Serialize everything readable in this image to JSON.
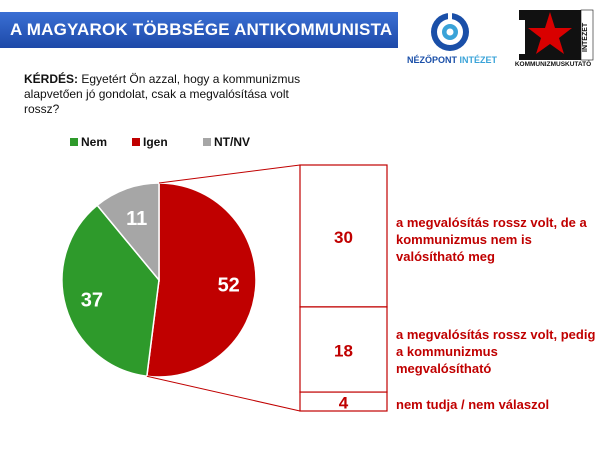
{
  "header": {
    "title": "A MAGYAROK TÖBBSÉGE ANTIKOMMUNISTA",
    "logo1_text_a": "NÉZŐPONT",
    "logo1_text_b": "INTÉZET",
    "logo2_text_main": "KOMMUNIZMUSKUTATÓ",
    "logo2_text_side": "INTÉZET"
  },
  "question": {
    "label": "KÉRDÉS",
    "text": "Egyetért Ön azzal, hogy a kommunizmus alapvetően jó gondolat, csak a megvalósítása volt rossz?"
  },
  "colors": {
    "nem": "#2e9a2b",
    "igen": "#c00000",
    "ntnv": "#a6a6a6",
    "title_bar": "#2a5cc0",
    "desc_text": "#c00000"
  },
  "chart_data": {
    "type": "pie",
    "categories": [
      "Nem",
      "Igen",
      "NT/NV"
    ],
    "values": [
      37,
      52,
      11
    ],
    "labels": [
      "37",
      "52",
      "11"
    ],
    "legend_position": "top",
    "breakdown": {
      "type": "bar",
      "parent_category": "Igen",
      "values": [
        30,
        18,
        4
      ],
      "labels": [
        "30",
        "18",
        "4"
      ],
      "descriptions": [
        "a megvalósítás rossz volt, de a kommunizmus nem is valósítható meg",
        "a megvalósítás rossz volt, pedig a kommunizmus megvalósítható",
        "nem tudja / nem válaszol"
      ]
    }
  }
}
